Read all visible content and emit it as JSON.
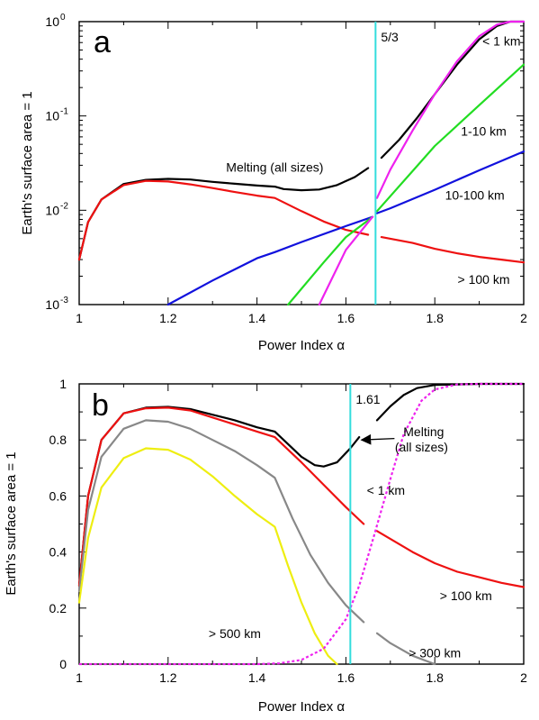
{
  "chart_data": [
    {
      "panel_label": "a",
      "type": "line",
      "xlabel": "Power Index α",
      "ylabel": "Earth's surface area = 1",
      "xlim": [
        1,
        2
      ],
      "ylim": [
        0.001,
        1
      ],
      "yscale": "log",
      "xticks": [
        "1",
        "1.2",
        "1.4",
        "1.6",
        "1.8",
        "2"
      ],
      "yticks": [
        {
          "base": "10",
          "exp": "-3"
        },
        {
          "base": "10",
          "exp": "-2"
        },
        {
          "base": "10",
          "exp": "-1"
        },
        {
          "base": "10",
          "exp": "0"
        }
      ],
      "grid": false,
      "vline": {
        "x": 1.6667,
        "label": "5/3",
        "color": "#33dddd"
      },
      "series": [
        {
          "name": "Melting (all sizes)",
          "color": "#000000",
          "segments": [
            [
              [
                1.0,
                0.003
              ],
              [
                1.02,
                0.0075
              ],
              [
                1.05,
                0.013
              ],
              [
                1.1,
                0.019
              ],
              [
                1.15,
                0.021
              ],
              [
                1.2,
                0.0215
              ],
              [
                1.25,
                0.0212
              ],
              [
                1.3,
                0.02
              ],
              [
                1.35,
                0.0191
              ],
              [
                1.4,
                0.0183
              ],
              [
                1.44,
                0.0178
              ],
              [
                1.46,
                0.0168
              ],
              [
                1.5,
                0.0163
              ],
              [
                1.54,
                0.0166
              ],
              [
                1.58,
                0.0185
              ],
              [
                1.62,
                0.0225
              ],
              [
                1.65,
                0.028
              ]
            ],
            [
              [
                1.68,
                0.036
              ],
              [
                1.72,
                0.056
              ],
              [
                1.76,
                0.095
              ],
              [
                1.8,
                0.17
              ],
              [
                1.85,
                0.35
              ],
              [
                1.9,
                0.65
              ],
              [
                1.94,
                0.9
              ],
              [
                1.97,
                1.0
              ],
              [
                2.0,
                1.0
              ]
            ]
          ]
        },
        {
          "name": "> 100 km",
          "color": "#ee1111",
          "segments": [
            [
              [
                1.0,
                0.003
              ],
              [
                1.02,
                0.0075
              ],
              [
                1.05,
                0.013
              ],
              [
                1.1,
                0.0185
              ],
              [
                1.15,
                0.0205
              ],
              [
                1.2,
                0.0202
              ],
              [
                1.25,
                0.0188
              ],
              [
                1.3,
                0.0172
              ],
              [
                1.35,
                0.0156
              ],
              [
                1.4,
                0.0143
              ],
              [
                1.44,
                0.0135
              ],
              [
                1.5,
                0.0098
              ],
              [
                1.55,
                0.0076
              ],
              [
                1.6,
                0.0062
              ],
              [
                1.65,
                0.0055
              ]
            ],
            [
              [
                1.68,
                0.0052
              ],
              [
                1.75,
                0.0045
              ],
              [
                1.8,
                0.0039
              ],
              [
                1.85,
                0.0035
              ],
              [
                1.9,
                0.0032
              ],
              [
                1.95,
                0.003
              ],
              [
                2.0,
                0.0028
              ]
            ]
          ]
        },
        {
          "name": "10-100 km",
          "color": "#1111dd",
          "segments": [
            [
              [
                1.2,
                0.001
              ],
              [
                1.3,
                0.0018
              ],
              [
                1.4,
                0.0031
              ],
              [
                1.44,
                0.0036
              ],
              [
                1.5,
                0.0046
              ],
              [
                1.6,
                0.0068
              ],
              [
                1.66,
                0.0085
              ]
            ],
            [
              [
                1.67,
                0.0093
              ],
              [
                1.7,
                0.0105
              ],
              [
                1.8,
                0.0165
              ],
              [
                1.9,
                0.0265
              ],
              [
                2.0,
                0.042
              ]
            ]
          ]
        },
        {
          "name": "1-10 km",
          "color": "#22dd22",
          "segments": [
            [
              [
                1.47,
                0.001
              ],
              [
                1.55,
                0.0028
              ],
              [
                1.6,
                0.0052
              ],
              [
                1.66,
                0.0085
              ]
            ],
            [
              [
                1.67,
                0.0098
              ],
              [
                1.75,
                0.026
              ],
              [
                1.8,
                0.048
              ],
              [
                1.9,
                0.13
              ],
              [
                2.0,
                0.35
              ]
            ]
          ]
        },
        {
          "name": "< 1 km",
          "color": "#ee22ee",
          "segments": [
            [
              [
                1.54,
                0.001
              ],
              [
                1.6,
                0.0038
              ],
              [
                1.66,
                0.0085
              ]
            ],
            [
              [
                1.67,
                0.0135
              ],
              [
                1.7,
                0.027
              ],
              [
                1.75,
                0.07
              ],
              [
                1.8,
                0.17
              ],
              [
                1.85,
                0.38
              ],
              [
                1.9,
                0.7
              ],
              [
                1.94,
                0.93
              ],
              [
                1.97,
                1.0
              ],
              [
                2.0,
                1.0
              ]
            ]
          ]
        }
      ],
      "annotations": [
        {
          "text": "Melting (all sizes)",
          "x": 1.44,
          "y": 0.0285,
          "color": "#000000"
        },
        {
          "text": "< 1 km",
          "x": 1.95,
          "y": 0.62,
          "color": "#000000"
        },
        {
          "text": "1-10 km",
          "x": 1.91,
          "y": 0.069,
          "color": "#000000"
        },
        {
          "text": "10-100 km",
          "x": 1.89,
          "y": 0.0145,
          "color": "#000000"
        },
        {
          "text": "> 100 km",
          "x": 1.91,
          "y": 0.00185,
          "color": "#000000"
        }
      ]
    },
    {
      "panel_label": "b",
      "type": "line",
      "xlabel": "Power Index α",
      "ylabel": "Earth's surface area = 1",
      "xlim": [
        1,
        2
      ],
      "ylim": [
        0,
        1
      ],
      "yscale": "linear",
      "xticks": [
        "1",
        "1.2",
        "1.4",
        "1.6",
        "1.8",
        "2"
      ],
      "yticks": [
        "0",
        "0.2",
        "0.4",
        "0.6",
        "0.8",
        "1"
      ],
      "grid": false,
      "vline": {
        "x": 1.61,
        "label": "1.61",
        "color": "#33dddd"
      },
      "series": [
        {
          "name": "Melting (all sizes)",
          "color": "#000000",
          "dashed": false,
          "segments": [
            [
              [
                1.0,
                0.28
              ],
              [
                1.02,
                0.6
              ],
              [
                1.05,
                0.8
              ],
              [
                1.1,
                0.895
              ],
              [
                1.15,
                0.915
              ],
              [
                1.2,
                0.918
              ],
              [
                1.25,
                0.91
              ],
              [
                1.3,
                0.89
              ],
              [
                1.35,
                0.87
              ],
              [
                1.4,
                0.845
              ],
              [
                1.44,
                0.83
              ],
              [
                1.46,
                0.8
              ],
              [
                1.5,
                0.74
              ],
              [
                1.53,
                0.71
              ],
              [
                1.55,
                0.705
              ],
              [
                1.58,
                0.72
              ],
              [
                1.61,
                0.77
              ],
              [
                1.63,
                0.81
              ]
            ],
            [
              [
                1.67,
                0.87
              ],
              [
                1.7,
                0.92
              ],
              [
                1.73,
                0.96
              ],
              [
                1.76,
                0.985
              ],
              [
                1.8,
                0.996
              ],
              [
                1.9,
                1.0
              ],
              [
                2.0,
                1.0
              ]
            ]
          ]
        },
        {
          "name": "> 100 km",
          "color": "#ee1111",
          "dashed": false,
          "segments": [
            [
              [
                1.0,
                0.28
              ],
              [
                1.02,
                0.6
              ],
              [
                1.05,
                0.8
              ],
              [
                1.1,
                0.895
              ],
              [
                1.15,
                0.913
              ],
              [
                1.2,
                0.915
              ],
              [
                1.25,
                0.905
              ],
              [
                1.3,
                0.88
              ],
              [
                1.35,
                0.855
              ],
              [
                1.4,
                0.83
              ],
              [
                1.44,
                0.81
              ],
              [
                1.5,
                0.72
              ],
              [
                1.55,
                0.64
              ],
              [
                1.6,
                0.56
              ],
              [
                1.64,
                0.5
              ]
            ],
            [
              [
                1.67,
                0.475
              ],
              [
                1.75,
                0.4
              ],
              [
                1.8,
                0.36
              ],
              [
                1.85,
                0.33
              ],
              [
                1.9,
                0.31
              ],
              [
                1.95,
                0.29
              ],
              [
                2.0,
                0.275
              ]
            ]
          ]
        },
        {
          "name": "> 300 km",
          "color": "#888888",
          "dashed": false,
          "segments": [
            [
              [
                1.0,
                0.26
              ],
              [
                1.02,
                0.55
              ],
              [
                1.05,
                0.74
              ],
              [
                1.1,
                0.84
              ],
              [
                1.15,
                0.87
              ],
              [
                1.2,
                0.865
              ],
              [
                1.25,
                0.84
              ],
              [
                1.3,
                0.8
              ],
              [
                1.35,
                0.76
              ],
              [
                1.4,
                0.71
              ],
              [
                1.44,
                0.665
              ],
              [
                1.48,
                0.52
              ],
              [
                1.52,
                0.39
              ],
              [
                1.56,
                0.29
              ],
              [
                1.6,
                0.21
              ],
              [
                1.64,
                0.15
              ]
            ],
            [
              [
                1.67,
                0.11
              ],
              [
                1.7,
                0.075
              ],
              [
                1.75,
                0.03
              ],
              [
                1.8,
                0.0
              ]
            ]
          ]
        },
        {
          "name": "> 500 km",
          "color": "#eeee11",
          "dashed": false,
          "segments": [
            [
              [
                1.0,
                0.22
              ],
              [
                1.02,
                0.45
              ],
              [
                1.05,
                0.63
              ],
              [
                1.1,
                0.735
              ],
              [
                1.15,
                0.77
              ],
              [
                1.2,
                0.765
              ],
              [
                1.25,
                0.73
              ],
              [
                1.3,
                0.67
              ],
              [
                1.35,
                0.6
              ],
              [
                1.4,
                0.535
              ],
              [
                1.44,
                0.49
              ],
              [
                1.47,
                0.35
              ],
              [
                1.5,
                0.22
              ],
              [
                1.53,
                0.11
              ],
              [
                1.56,
                0.03
              ],
              [
                1.58,
                0.0
              ]
            ]
          ]
        },
        {
          "name": "< 1 km",
          "color": "#ee22ee",
          "dashed": true,
          "segments": [
            [
              [
                1.0,
                0.0
              ],
              [
                1.4,
                0.0
              ],
              [
                1.45,
                0.003
              ],
              [
                1.5,
                0.015
              ],
              [
                1.55,
                0.055
              ],
              [
                1.6,
                0.16
              ],
              [
                1.63,
                0.28
              ],
              [
                1.66,
                0.44
              ],
              [
                1.7,
                0.66
              ],
              [
                1.73,
                0.82
              ],
              [
                1.77,
                0.94
              ],
              [
                1.8,
                0.98
              ],
              [
                1.85,
                0.998
              ],
              [
                1.9,
                1.0
              ],
              [
                2.0,
                1.0
              ]
            ]
          ]
        }
      ],
      "annotations": [
        {
          "text": "Melting",
          "x": 1.775,
          "y": 0.83,
          "color": "#000000"
        },
        {
          "text": "(all sizes)",
          "x": 1.77,
          "y": 0.775,
          "color": "#000000"
        },
        {
          "text": "< 1 km",
          "x": 1.69,
          "y": 0.62,
          "color": "#000000"
        },
        {
          "text": "> 100 km",
          "x": 1.87,
          "y": 0.245,
          "color": "#000000"
        },
        {
          "text": "> 500 km",
          "x": 1.35,
          "y": 0.11,
          "color": "#000000"
        },
        {
          "text": "> 300 km",
          "x": 1.8,
          "y": 0.04,
          "color": "#000000"
        }
      ],
      "arrow": {
        "from": [
          1.77,
          0.805
        ],
        "to": [
          1.635,
          0.8
        ]
      }
    }
  ]
}
